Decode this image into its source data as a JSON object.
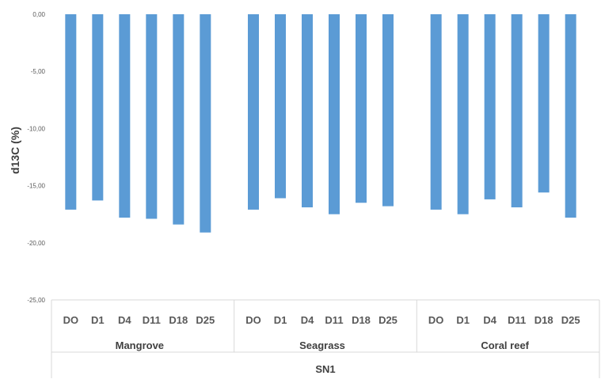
{
  "chart_data": {
    "type": "bar",
    "ylabel": "d13C (%)",
    "ylim": [
      -25,
      0
    ],
    "yticks": [
      "0,00",
      "-5,00",
      "-10,00",
      "-15,00",
      "-20,00",
      "-25,00"
    ],
    "ytick_values": [
      0,
      -5,
      -10,
      -15,
      -20,
      -25
    ],
    "outer_label": "SN1",
    "groups": [
      {
        "name": "Mangrove",
        "categories": [
          "DO",
          "D1",
          "D4",
          "D11",
          "D18",
          "D25"
        ],
        "values": [
          -17.1,
          -16.3,
          -17.8,
          -17.9,
          -18.4,
          -19.1
        ]
      },
      {
        "name": "Seagrass",
        "categories": [
          "DO",
          "D1",
          "D4",
          "D11",
          "D18",
          "D25"
        ],
        "values": [
          -17.1,
          -16.1,
          -16.9,
          -17.5,
          -16.5,
          -16.8
        ]
      },
      {
        "name": "Coral reef",
        "categories": [
          "DO",
          "D1",
          "D4",
          "D11",
          "D18",
          "D25"
        ],
        "values": [
          -17.1,
          -17.5,
          -16.2,
          -16.9,
          -15.6,
          -17.8
        ]
      }
    ],
    "bar_color": "#5B9BD5",
    "grid": false,
    "legend": "none"
  }
}
